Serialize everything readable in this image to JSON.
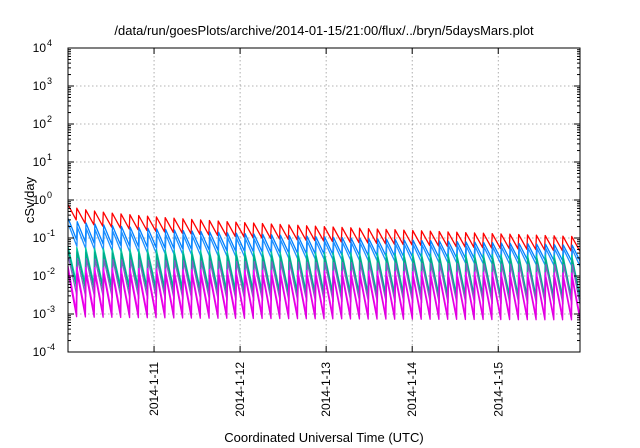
{
  "chart_data": {
    "type": "line",
    "title": "/data/run/goesPlots/archive/2014-01-15/21:00/flux/../bryn/5daysMars.plot",
    "xlabel": "Coordinated Universal Time (UTC)",
    "ylabel": "cSv/day",
    "yscale": "log",
    "ylim": [
      0.0001,
      10000
    ],
    "xlim": [
      0.0,
      5.95
    ],
    "x_ticks": [
      {
        "value": 1,
        "label": "2014-1-11"
      },
      {
        "value": 2,
        "label": "2014-1-12"
      },
      {
        "value": 3,
        "label": "2014-1-13"
      },
      {
        "value": 4,
        "label": "2014-1-14"
      },
      {
        "value": 5,
        "label": "2014-1-15"
      }
    ],
    "y_ticks": [
      {
        "value": 0.0001,
        "base": "10",
        "exp": "-4"
      },
      {
        "value": 0.001,
        "base": "10",
        "exp": "-3"
      },
      {
        "value": 0.01,
        "base": "10",
        "exp": "-2"
      },
      {
        "value": 0.1,
        "base": "10",
        "exp": "-1"
      },
      {
        "value": 1,
        "base": "10",
        "exp": "0"
      },
      {
        "value": 10,
        "base": "10",
        "exp": "1"
      },
      {
        "value": 100,
        "base": "10",
        "exp": "2"
      },
      {
        "value": 1000,
        "base": "10",
        "exp": "3"
      },
      {
        "value": 10000,
        "base": "10",
        "exp": "4"
      }
    ],
    "grid": true,
    "sawtooth_period_days": 0.1027,
    "series": [
      {
        "color": "#ff0000",
        "peak_start": 0.75,
        "peak_end": 0.11,
        "trough_start": 0.3,
        "trough_end": 0.045
      },
      {
        "color": "#0080ff",
        "peak_start": 0.32,
        "peak_end": 0.065,
        "trough_start": 0.09,
        "trough_end": 0.025
      },
      {
        "color": "#1e90ff",
        "peak_start": 0.22,
        "peak_end": 0.05,
        "trough_start": 0.06,
        "trough_end": 0.018
      },
      {
        "color": "#00c8a0",
        "peak_start": 0.06,
        "peak_end": 0.035,
        "trough_start": 0.007,
        "trough_end": 0.003
      },
      {
        "color": "#00aa88",
        "peak_start": 0.045,
        "peak_end": 0.028,
        "trough_start": 0.005,
        "trough_end": 0.0025
      },
      {
        "color": "#8060c0",
        "peak_start": 0.03,
        "peak_end": 0.02,
        "trough_start": 0.003,
        "trough_end": 0.0018
      },
      {
        "color": "#ff00ff",
        "peak_start": 0.018,
        "peak_end": 0.012,
        "trough_start": 0.0012,
        "trough_end": 0.0009
      },
      {
        "color": "#e000e0",
        "peak_start": 0.012,
        "peak_end": 0.009,
        "trough_start": 0.00085,
        "trough_end": 0.0007
      }
    ]
  }
}
